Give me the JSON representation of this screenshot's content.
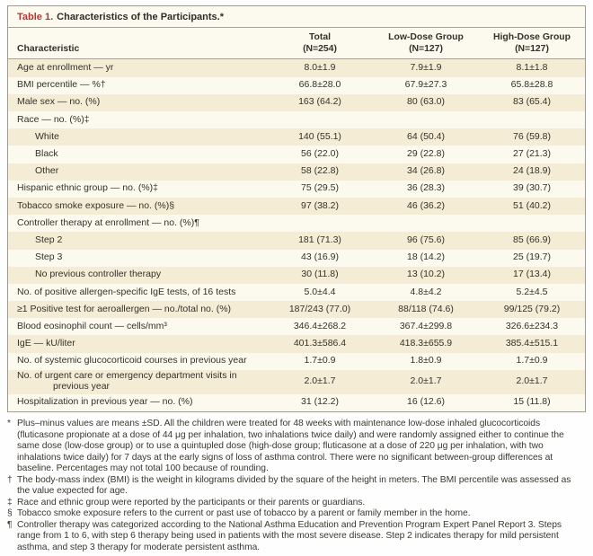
{
  "colors": {
    "accent_red": "#b4362e",
    "stripe_cream": "#f5ecd5",
    "table_bg": "#fcf9ee",
    "border_gray": "#9e9c90",
    "text": "#33312a"
  },
  "table": {
    "title_label": "Table 1.",
    "title_text": "Characteristics of the Participants.*",
    "char_header": "Characteristic",
    "columns": [
      {
        "line1": "Total",
        "line2": "(N=254)"
      },
      {
        "line1": "Low-Dose Group",
        "line2": "(N=127)"
      },
      {
        "line1": "High-Dose Group",
        "line2": "(N=127)"
      }
    ],
    "rows": [
      {
        "label": "Age at enrollment — yr",
        "indent": false,
        "values": [
          "8.0±1.9",
          "7.9±1.9",
          "8.1±1.8"
        ]
      },
      {
        "label": "BMI percentile — %†",
        "indent": false,
        "values": [
          "66.8±28.0",
          "67.9±27.3",
          "65.8±28.8"
        ]
      },
      {
        "label": "Male sex — no. (%)",
        "indent": false,
        "values": [
          "163 (64.2)",
          "80 (63.0)",
          "83 (65.4)"
        ]
      },
      {
        "label": "Race — no. (%)‡",
        "indent": false,
        "values": [
          "",
          "",
          ""
        ]
      },
      {
        "label": "White",
        "indent": true,
        "values": [
          "140 (55.1)",
          "64 (50.4)",
          "76 (59.8)"
        ]
      },
      {
        "label": "Black",
        "indent": true,
        "values": [
          "56 (22.0)",
          "29 (22.8)",
          "27 (21.3)"
        ]
      },
      {
        "label": "Other",
        "indent": true,
        "values": [
          "58 (22.8)",
          "34 (26.8)",
          "24 (18.9)"
        ]
      },
      {
        "label": "Hispanic ethnic group — no. (%)‡",
        "indent": false,
        "values": [
          "75 (29.5)",
          "36 (28.3)",
          "39 (30.7)"
        ]
      },
      {
        "label": "Tobacco smoke exposure — no. (%)§",
        "indent": false,
        "values": [
          "97 (38.2)",
          "46 (36.2)",
          "51 (40.2)"
        ]
      },
      {
        "label": "Controller therapy at enrollment — no. (%)¶",
        "indent": false,
        "values": [
          "",
          "",
          ""
        ]
      },
      {
        "label": "Step 2",
        "indent": true,
        "values": [
          "181 (71.3)",
          "96 (75.6)",
          "85 (66.9)"
        ]
      },
      {
        "label": "Step 3",
        "indent": true,
        "values": [
          "43 (16.9)",
          "18 (14.2)",
          "25 (19.7)"
        ]
      },
      {
        "label": "No previous controller therapy",
        "indent": true,
        "values": [
          "30 (11.8)",
          "13 (10.2)",
          "17 (13.4)"
        ]
      },
      {
        "label": "No. of positive allergen-specific IgE tests, of 16 tests",
        "indent": false,
        "values": [
          "5.0±4.4",
          "4.8±4.2",
          "5.2±4.5"
        ]
      },
      {
        "label": "≥1 Positive test for aeroallergen — no./total no. (%)",
        "indent": false,
        "values": [
          "187/243 (77.0)",
          "88/118 (74.6)",
          "99/125 (79.2)"
        ]
      },
      {
        "label": "Blood eosinophil count — cells/mm³",
        "indent": false,
        "values": [
          "346.4±268.2",
          "367.4±299.8",
          "326.6±234.3"
        ]
      },
      {
        "label": "IgE — kU/liter",
        "indent": false,
        "values": [
          "401.3±586.4",
          "418.3±655.9",
          "385.4±515.1"
        ]
      },
      {
        "label": "No. of systemic glucocorticoid courses in previous year",
        "indent": false,
        "values": [
          "1.7±0.9",
          "1.8±0.9",
          "1.7±0.9"
        ]
      },
      {
        "label": "No. of urgent care or emergency department visits in previous year",
        "indent": false,
        "values": [
          "2.0±1.7",
          "2.0±1.7",
          "2.0±1.7"
        ]
      },
      {
        "label": "Hospitalization in previous year — no. (%)",
        "indent": false,
        "values": [
          "31 (12.2)",
          "16 (12.6)",
          "15 (11.8)"
        ]
      }
    ]
  },
  "footnotes": [
    {
      "marker": "*",
      "text": "Plus–minus values are means ±SD. All the children were treated for 48 weeks with maintenance low-dose inhaled glucocorticoids (fluticasone propionate at a dose of 44 μg per inhalation, two inhalations twice daily) and were randomly assigned either to continue the same dose (low-dose group) or to use a quintupled dose (high-dose group; fluticasone at a dose of 220 μg per inhalation, with two inhalations twice daily) for 7 days at the early signs of loss of asthma control. There were no significant between-group differences at baseline. Percentages may not total 100 because of rounding."
    },
    {
      "marker": "†",
      "text": "The body-mass index (BMI) is the weight in kilograms divided by the square of the height in meters. The BMI percentile was assessed as the value expected for age."
    },
    {
      "marker": "‡",
      "text": "Race and ethnic group were reported by the participants or their parents or guardians."
    },
    {
      "marker": "§",
      "text": "Tobacco smoke exposure refers to the current or past use of tobacco by a parent or family member in the home."
    },
    {
      "marker": "¶",
      "text": "Controller therapy was categorized according to the National Asthma Education and Prevention Program Expert Panel Report 3. Steps range from 1 to 6, with step 6 therapy being used in patients with the most severe disease. Step 2 indicates therapy for mild persistent asthma, and step 3 therapy for moderate persistent asthma."
    }
  ]
}
